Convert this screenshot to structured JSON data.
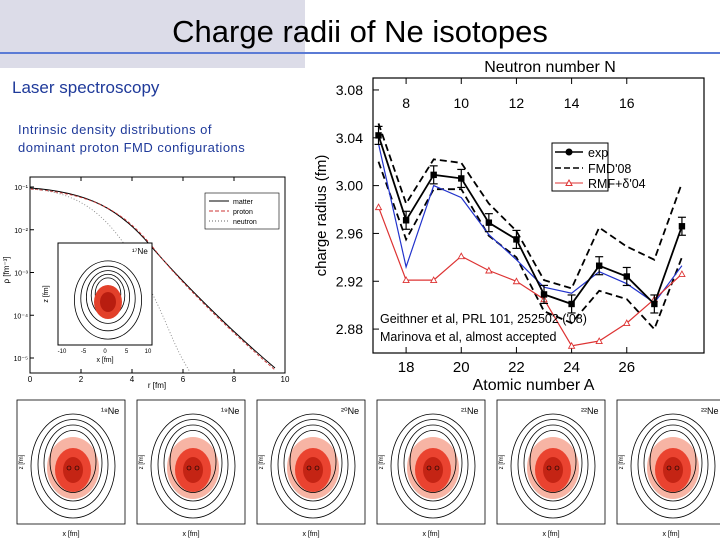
{
  "slide": {
    "title": "Charge radii of Ne isotopes",
    "subtitle": "Laser spectroscopy",
    "description": [
      "Intrinsic density distributions of",
      "dominant proton FMD configurations"
    ],
    "citation": [
      "Geithner et al, PRL 101, 252502 ('08)",
      "Marinova et al, almost accepted"
    ]
  },
  "chart_data": [
    {
      "type": "line",
      "title": "",
      "xlabel": "Atomic number A",
      "ylabel": "charge radius (fm)",
      "top_axis_label": "Neutron number N",
      "top_axis_ticks": [
        "8",
        "10",
        "12",
        "14",
        "16"
      ],
      "xlim": [
        16.8,
        28.8
      ],
      "ylim": [
        2.86,
        3.09
      ],
      "x_ticks": [
        "18",
        "20",
        "22",
        "24",
        "26"
      ],
      "y_ticks": [
        "2.88",
        "2.92",
        "2.96",
        "3.00",
        "3.04",
        "3.08"
      ],
      "legend_position": "top-right",
      "series": [
        {
          "name": "exp",
          "color": "#000000",
          "x": [
            17,
            18,
            19,
            20,
            21,
            22,
            23,
            24,
            25,
            26,
            27,
            28
          ],
          "y": [
            3.042,
            2.971,
            3.009,
            3.006,
            2.969,
            2.955,
            2.909,
            2.901,
            2.933,
            2.924,
            2.901,
            2.966
          ]
        },
        {
          "name": "FMD'08",
          "color": "#000000",
          "upper": [
            3.052,
            2.985,
            3.022,
            3.019,
            2.985,
            2.962,
            2.921,
            2.914,
            2.965,
            2.949,
            2.938,
            3.002
          ],
          "lower": [
            3.02,
            2.955,
            2.997,
            2.997,
            2.958,
            2.94,
            2.895,
            2.885,
            2.912,
            2.905,
            2.88,
            2.94
          ]
        },
        {
          "name": "RMF+δ'04",
          "color": "#dd3333",
          "x": [
            17,
            18,
            19,
            20,
            21,
            22,
            23,
            24,
            25,
            26,
            27,
            28
          ],
          "y": [
            2.982,
            2.921,
            2.921,
            2.941,
            2.929,
            2.92,
            2.905,
            2.866,
            2.87,
            2.885,
            2.905,
            2.926
          ]
        },
        {
          "name": "",
          "color": "#2233cc",
          "x": [
            17,
            18,
            19,
            20,
            21,
            22,
            23,
            24,
            25,
            26,
            27,
            28
          ],
          "y": [
            3.035,
            2.932,
            3.0,
            2.99,
            2.959,
            2.938,
            2.915,
            2.91,
            2.928,
            2.918,
            2.902,
            2.933
          ]
        }
      ]
    },
    {
      "type": "line",
      "title": "",
      "xlabel": "r [fm]",
      "ylabel": "ρ [fm⁻³]",
      "log_y": true,
      "xlim": [
        0,
        10
      ],
      "x_ticks": [
        "0",
        "2",
        "4",
        "6",
        "8",
        "10"
      ],
      "y_ticks": [
        "10⁻⁵",
        "10⁻⁴",
        "10⁻³",
        "10⁻²",
        "10⁻¹"
      ],
      "legend_position": "top-right",
      "series": [
        {
          "name": "matter",
          "style": "solid"
        },
        {
          "name": "proton",
          "style": "dashed"
        },
        {
          "name": "neutron",
          "style": "dotted"
        }
      ],
      "inset_label": "¹⁷Ne",
      "inset_axes": {
        "xlabel": "x [fm]",
        "ylabel": "z [fm]",
        "ticks": [
          "-10",
          "-5",
          "0",
          "5",
          "10"
        ]
      }
    }
  ],
  "density_panels": [
    {
      "label": "¹⁸Ne"
    },
    {
      "label": "¹⁹Ne"
    },
    {
      "label": "²⁰Ne"
    },
    {
      "label": "²¹Ne"
    },
    {
      "label": "²²Ne"
    },
    {
      "label": "²²Ne"
    }
  ],
  "density_axes": {
    "xlabel": "x [fm]",
    "ylabel": "z [fm]"
  }
}
